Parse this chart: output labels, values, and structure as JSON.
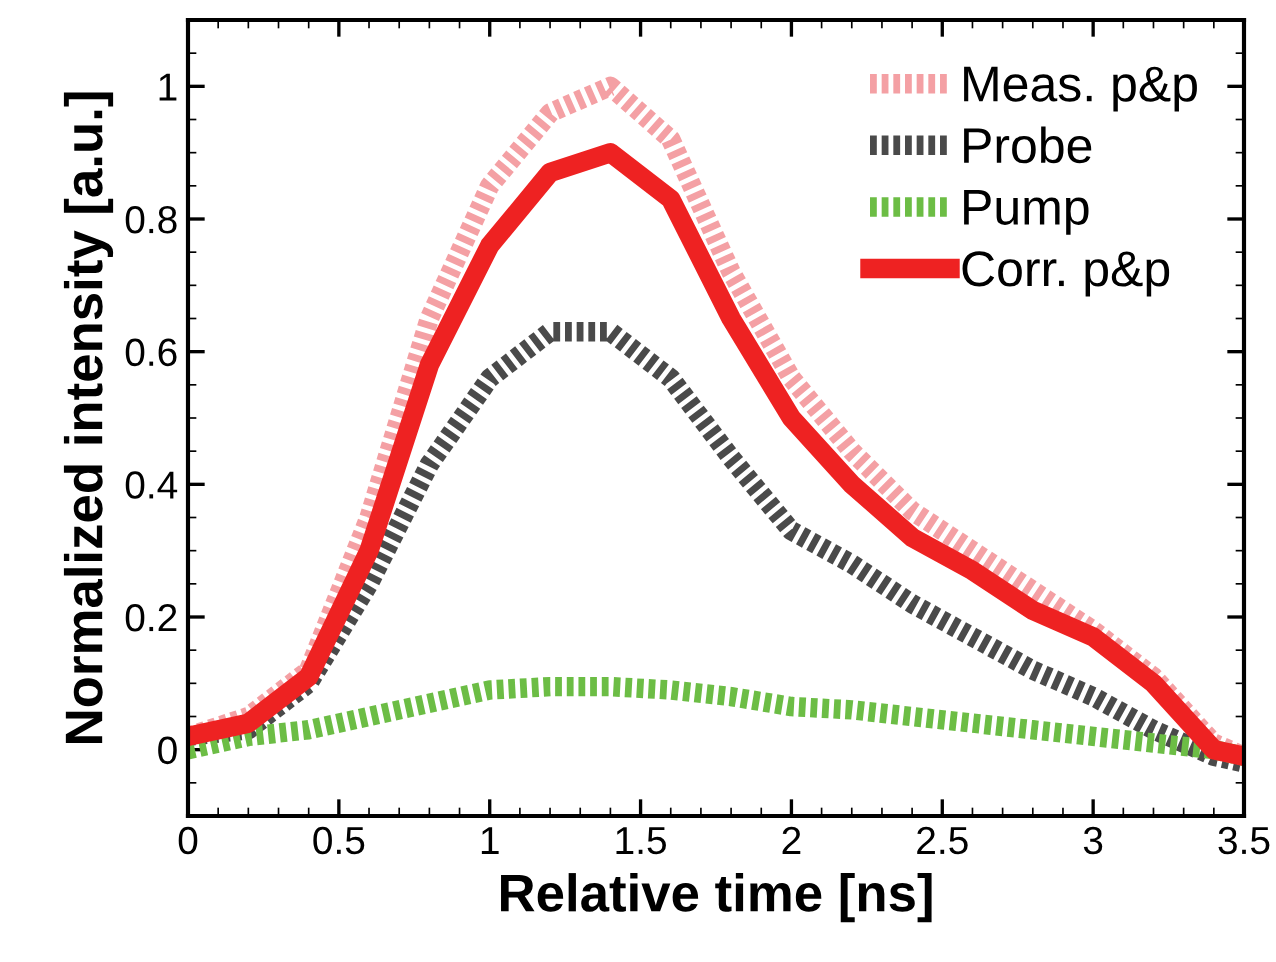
{
  "chart_data": {
    "type": "line",
    "xlabel": "Relative time [ns]",
    "ylabel": "Normalized intensity [a.u.]",
    "x": [
      0,
      0.2,
      0.4,
      0.6,
      0.8,
      1.0,
      1.2,
      1.4,
      1.6,
      1.8,
      2.0,
      2.2,
      2.4,
      2.6,
      2.8,
      3.0,
      3.2,
      3.4,
      3.5
    ],
    "xlim": [
      0,
      3.5
    ],
    "xticks": [
      0,
      0.5,
      1,
      1.5,
      2,
      2.5,
      3,
      3.5
    ],
    "ylim": [
      -0.1,
      1.1
    ],
    "yticks": [
      0,
      0.2,
      0.4,
      0.6,
      0.8,
      1
    ],
    "grid": false,
    "legend": "top right",
    "marker": "none",
    "series": [
      {
        "name": "Meas. p&p",
        "color": "#f4a0a4",
        "line_style": "dotted",
        "values": [
          0.02,
          0.05,
          0.12,
          0.35,
          0.65,
          0.85,
          0.96,
          1.0,
          0.92,
          0.72,
          0.56,
          0.45,
          0.36,
          0.3,
          0.24,
          0.18,
          0.11,
          0.01,
          -0.01
        ]
      },
      {
        "name": "Probe",
        "color": "#4a4a4a",
        "line_style": "dotted",
        "values": [
          0.02,
          0.03,
          0.1,
          0.25,
          0.43,
          0.56,
          0.63,
          0.63,
          0.56,
          0.44,
          0.33,
          0.28,
          0.22,
          0.17,
          0.12,
          0.08,
          0.03,
          -0.01,
          -0.02
        ]
      },
      {
        "name": "Pump",
        "color": "#6cbd45",
        "line_style": "dotted",
        "values": [
          0.0,
          0.02,
          0.03,
          0.05,
          0.07,
          0.09,
          0.095,
          0.095,
          0.09,
          0.08,
          0.065,
          0.06,
          0.05,
          0.04,
          0.03,
          0.02,
          0.01,
          0.0,
          -0.01
        ]
      },
      {
        "name": "Corr. p&p",
        "color": "#ee2222",
        "line_style": "solid",
        "values": [
          0.02,
          0.04,
          0.11,
          0.3,
          0.58,
          0.76,
          0.87,
          0.9,
          0.83,
          0.65,
          0.5,
          0.4,
          0.32,
          0.27,
          0.21,
          0.17,
          0.1,
          0.0,
          -0.01
        ]
      }
    ]
  }
}
